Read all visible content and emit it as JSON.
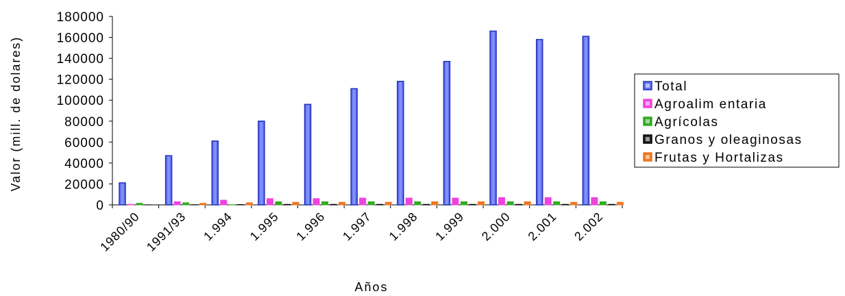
{
  "chart_data": {
    "type": "bar",
    "title": "",
    "xlabel": "Años",
    "ylabel": "Valor (mill. de dolares)",
    "ylim": [
      0,
      180000
    ],
    "yticks": [
      0,
      20000,
      40000,
      60000,
      80000,
      100000,
      120000,
      140000,
      160000,
      180000
    ],
    "categories": [
      "1980/90",
      "1991/93",
      "1.994",
      "1.995",
      "1.996",
      "1.997",
      "1.998",
      "1.999",
      "2.000",
      "2.001",
      "2.002"
    ],
    "grid": false,
    "legend_position": "right",
    "series": [
      {
        "name": "Total",
        "color": "#5f6ff0",
        "values": [
          21000,
          47000,
          61000,
          80000,
          96000,
          111000,
          118000,
          137000,
          166000,
          158000,
          161000
        ]
      },
      {
        "name": "Agroalim entaria",
        "color": "#ee44dd",
        "values": [
          500,
          3000,
          4500,
          6000,
          6000,
          6500,
          6500,
          6500,
          7000,
          7000,
          7000
        ]
      },
      {
        "name": "Agrícolas",
        "color": "#33aa22",
        "values": [
          1500,
          2000,
          200,
          3000,
          3000,
          3000,
          3000,
          3000,
          3000,
          3000,
          3000
        ]
      },
      {
        "name": "Granos y oleaginosas",
        "color": "#222222",
        "values": [
          100,
          200,
          300,
          500,
          500,
          500,
          500,
          500,
          500,
          500,
          500
        ]
      },
      {
        "name": "Frutas y Hortalizas",
        "color": "#ee7722",
        "values": [
          0,
          1500,
          2000,
          2500,
          2500,
          2500,
          3000,
          3000,
          3000,
          2500,
          2500
        ]
      }
    ]
  }
}
